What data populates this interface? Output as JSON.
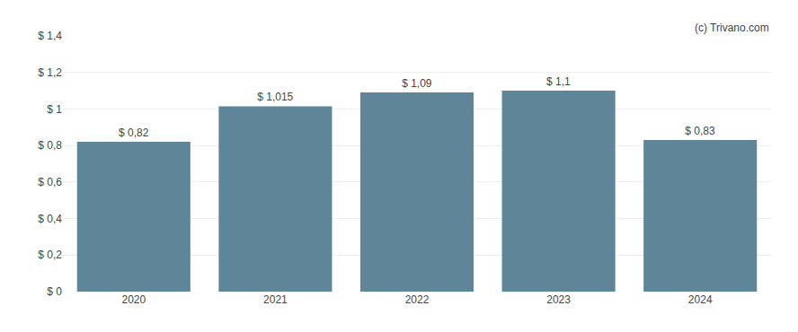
{
  "chart_data": {
    "type": "bar",
    "categories": [
      "2020",
      "2021",
      "2022",
      "2023",
      "2024"
    ],
    "values": [
      0.82,
      1.015,
      1.09,
      1.1,
      0.83
    ],
    "value_labels": [
      "$ 0,82",
      "$ 1,015",
      "$ 1,09",
      "$ 1,1",
      "$ 0,83"
    ],
    "data_labels": true,
    "color": "#5f8599",
    "ylim": [
      0,
      1.4
    ],
    "yticks": [
      {
        "value": 0,
        "label": "$ 0"
      },
      {
        "value": 0.2,
        "label": "$ 0,2"
      },
      {
        "value": 0.4,
        "label": "$ 0,4"
      },
      {
        "value": 0.6,
        "label": "$ 0,6"
      },
      {
        "value": 0.8,
        "label": "$ 0,8"
      },
      {
        "value": 1.0,
        "label": "$ 1"
      },
      {
        "value": 1.2,
        "label": "$ 1,2"
      },
      {
        "value": 1.4,
        "label": "$ 1,4"
      }
    ],
    "grid": true,
    "annotations": [
      "(c) Trivano.com"
    ]
  }
}
